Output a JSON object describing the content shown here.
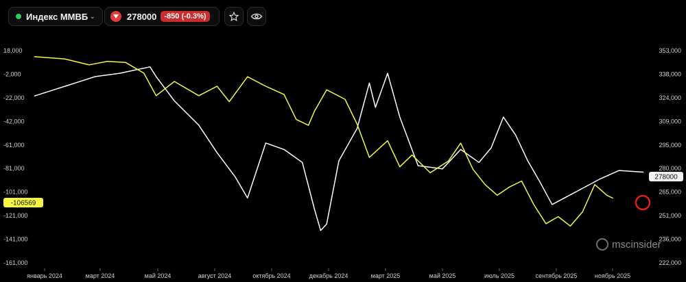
{
  "toolbar": {
    "index_name": "Индекс ММВБ",
    "price": "278000",
    "change": "-850 (-0.3%)"
  },
  "watermark": "mscinsider",
  "colors": {
    "white_series": "#ffffff",
    "yellow_series": "#f4f842",
    "change_badge": "#c92d2d",
    "status_dot": "#2ecc5a"
  },
  "chart_data": {
    "type": "line",
    "x_tick_labels": [
      "январь 2024",
      "март 2024",
      "май 2024",
      "август 2024",
      "октябрь 2024",
      "декабрь 2024",
      "март 2025",
      "май 2025",
      "июль 2025",
      "сентябрь 2025",
      "ноябрь 2025"
    ],
    "left_axis": {
      "tick_labels": [
        "18,000",
        "-2,000",
        "-22,000",
        "-42,000",
        "-61,000",
        "-81,000",
        "-101,000",
        "-121,000",
        "-141,000",
        "-161,000"
      ],
      "range": [
        -161000,
        18000
      ]
    },
    "right_axis": {
      "tick_labels": [
        "353,000",
        "338,000",
        "324,000",
        "309,000",
        "295,000",
        "280,000",
        "265,000",
        "251,000",
        "236,000",
        "222,000"
      ],
      "range": [
        222000,
        353000
      ]
    },
    "series": [
      {
        "axis": "right",
        "color": "#ffffff",
        "last_value_label": "278000",
        "points": [
          [
            0,
            325
          ],
          [
            0.05,
            331
          ],
          [
            0.1,
            337
          ],
          [
            0.14,
            339
          ],
          [
            0.19,
            343
          ],
          [
            0.2,
            337
          ],
          [
            0.23,
            322
          ],
          [
            0.27,
            307
          ],
          [
            0.3,
            290
          ],
          [
            0.33,
            275
          ],
          [
            0.35,
            262
          ],
          [
            0.38,
            296
          ],
          [
            0.41,
            292
          ],
          [
            0.44,
            284
          ],
          [
            0.46,
            255
          ],
          [
            0.47,
            242
          ],
          [
            0.48,
            246
          ],
          [
            0.5,
            285
          ],
          [
            0.53,
            305
          ],
          [
            0.55,
            333
          ],
          [
            0.56,
            318
          ],
          [
            0.58,
            339
          ],
          [
            0.6,
            312
          ],
          [
            0.63,
            282
          ],
          [
            0.67,
            280
          ],
          [
            0.7,
            292
          ],
          [
            0.73,
            284
          ],
          [
            0.75,
            293
          ],
          [
            0.77,
            312
          ],
          [
            0.79,
            301
          ],
          [
            0.81,
            285
          ],
          [
            0.83,
            272
          ],
          [
            0.85,
            258
          ],
          [
            0.87,
            262
          ],
          [
            0.9,
            268
          ],
          [
            0.93,
            274
          ],
          [
            0.96,
            279
          ],
          [
            1,
            278
          ]
        ]
      },
      {
        "axis": "left",
        "color": "#f4f842",
        "last_value_label": "-106569",
        "points": [
          [
            0,
            13000
          ],
          [
            0.05,
            11000
          ],
          [
            0.09,
            6000
          ],
          [
            0.12,
            9000
          ],
          [
            0.15,
            8000
          ],
          [
            0.18,
            -1000
          ],
          [
            0.2,
            -20000
          ],
          [
            0.23,
            -8000
          ],
          [
            0.27,
            -20000
          ],
          [
            0.3,
            -12000
          ],
          [
            0.32,
            -25000
          ],
          [
            0.35,
            -4000
          ],
          [
            0.38,
            -12000
          ],
          [
            0.41,
            -19000
          ],
          [
            0.43,
            -40000
          ],
          [
            0.45,
            -45000
          ],
          [
            0.46,
            -33000
          ],
          [
            0.48,
            -15000
          ],
          [
            0.51,
            -23000
          ],
          [
            0.53,
            -44000
          ],
          [
            0.55,
            -72000
          ],
          [
            0.58,
            -58000
          ],
          [
            0.6,
            -80000
          ],
          [
            0.62,
            -70000
          ],
          [
            0.65,
            -85000
          ],
          [
            0.68,
            -75000
          ],
          [
            0.7,
            -60000
          ],
          [
            0.72,
            -82000
          ],
          [
            0.74,
            -95000
          ],
          [
            0.76,
            -104000
          ],
          [
            0.78,
            -97000
          ],
          [
            0.8,
            -92000
          ],
          [
            0.82,
            -112000
          ],
          [
            0.84,
            -128000
          ],
          [
            0.86,
            -122000
          ],
          [
            0.88,
            -130000
          ],
          [
            0.9,
            -118000
          ],
          [
            0.92,
            -95000
          ],
          [
            0.94,
            -104000
          ],
          [
            0.95,
            -106569
          ]
        ]
      }
    ],
    "grid": false,
    "marker": "red-circle-near-last-value"
  }
}
